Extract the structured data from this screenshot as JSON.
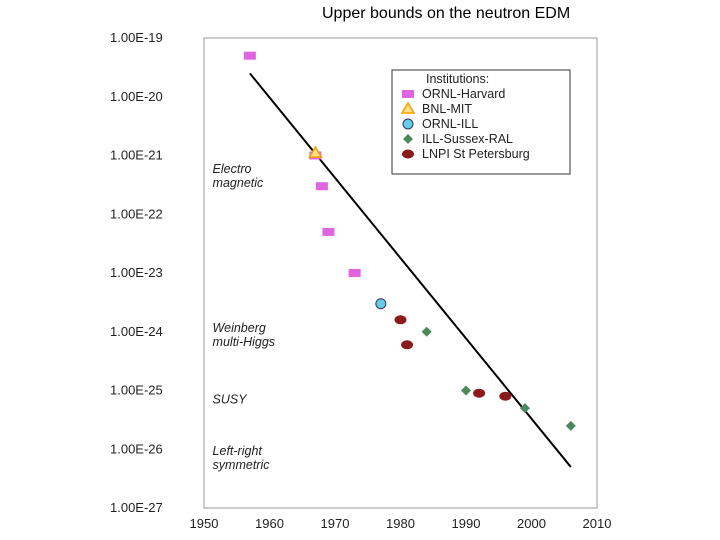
{
  "chart_data": {
    "type": "scatter",
    "title": "Upper bounds on the neutron EDM",
    "xlim": [
      1950,
      2010
    ],
    "ylim_exponent": [
      -27,
      -19
    ],
    "log_scale_y": true,
    "grid": true,
    "legend_placement": "top-right",
    "x_ticks": [
      "1950",
      "1960",
      "1970",
      "1980",
      "1990",
      "2000",
      "2010"
    ],
    "y_ticks": [
      "1.00E-19",
      "1.00E-20",
      "1.00E-21",
      "1.00E-22",
      "1.00E-23",
      "1.00E-24",
      "1.00E-25",
      "1.00E-26",
      "1.00E-27"
    ],
    "legend_title": "Institutions:",
    "series": [
      {
        "name": "ORNL-Harvard",
        "marker": "square",
        "color": "#e066e0",
        "points": [
          [
            1957,
            5e-20
          ],
          [
            1967,
            1e-21
          ],
          [
            1968,
            3e-22
          ],
          [
            1969,
            5e-23
          ],
          [
            1973,
            1e-23
          ]
        ]
      },
      {
        "name": "BNL-MIT",
        "marker": "triangle",
        "color": "#f4a000",
        "points": [
          [
            1967,
            1.1e-21
          ]
        ]
      },
      {
        "name": "ORNL-ILL",
        "marker": "circle",
        "color": "#66ccee",
        "points": [
          [
            1977,
            3e-24
          ]
        ]
      },
      {
        "name": "ILL-Sussex-RAL",
        "marker": "diamond",
        "color": "#4a8a5a",
        "points": [
          [
            1984,
            1e-24
          ],
          [
            1990,
            1e-25
          ],
          [
            1999,
            5e-26
          ],
          [
            2006,
            2.5e-26
          ]
        ]
      },
      {
        "name": "LNPI St Petersburg",
        "marker": "ellipse",
        "color": "#8b1a1a",
        "points": [
          [
            1980,
            1.6e-24
          ],
          [
            1981,
            6e-25
          ],
          [
            1992,
            9e-26
          ],
          [
            1996,
            8e-26
          ]
        ]
      }
    ],
    "trend_line": {
      "x": [
        1957,
        2006
      ],
      "y": [
        2.5e-20,
        5e-27
      ]
    },
    "annotations": [
      {
        "lines": [
          "Electro",
          "magnetic"
        ],
        "x": 1951,
        "y": 5e-22
      },
      {
        "lines": [
          "Weinberg",
          "multi-Higgs"
        ],
        "x": 1951,
        "y": 1e-24
      },
      {
        "lines": [
          "SUSY"
        ],
        "x": 1951,
        "y": 6e-26
      },
      {
        "lines": [
          "Left-right",
          "symmetric"
        ],
        "x": 1951,
        "y": 8e-27
      }
    ]
  }
}
